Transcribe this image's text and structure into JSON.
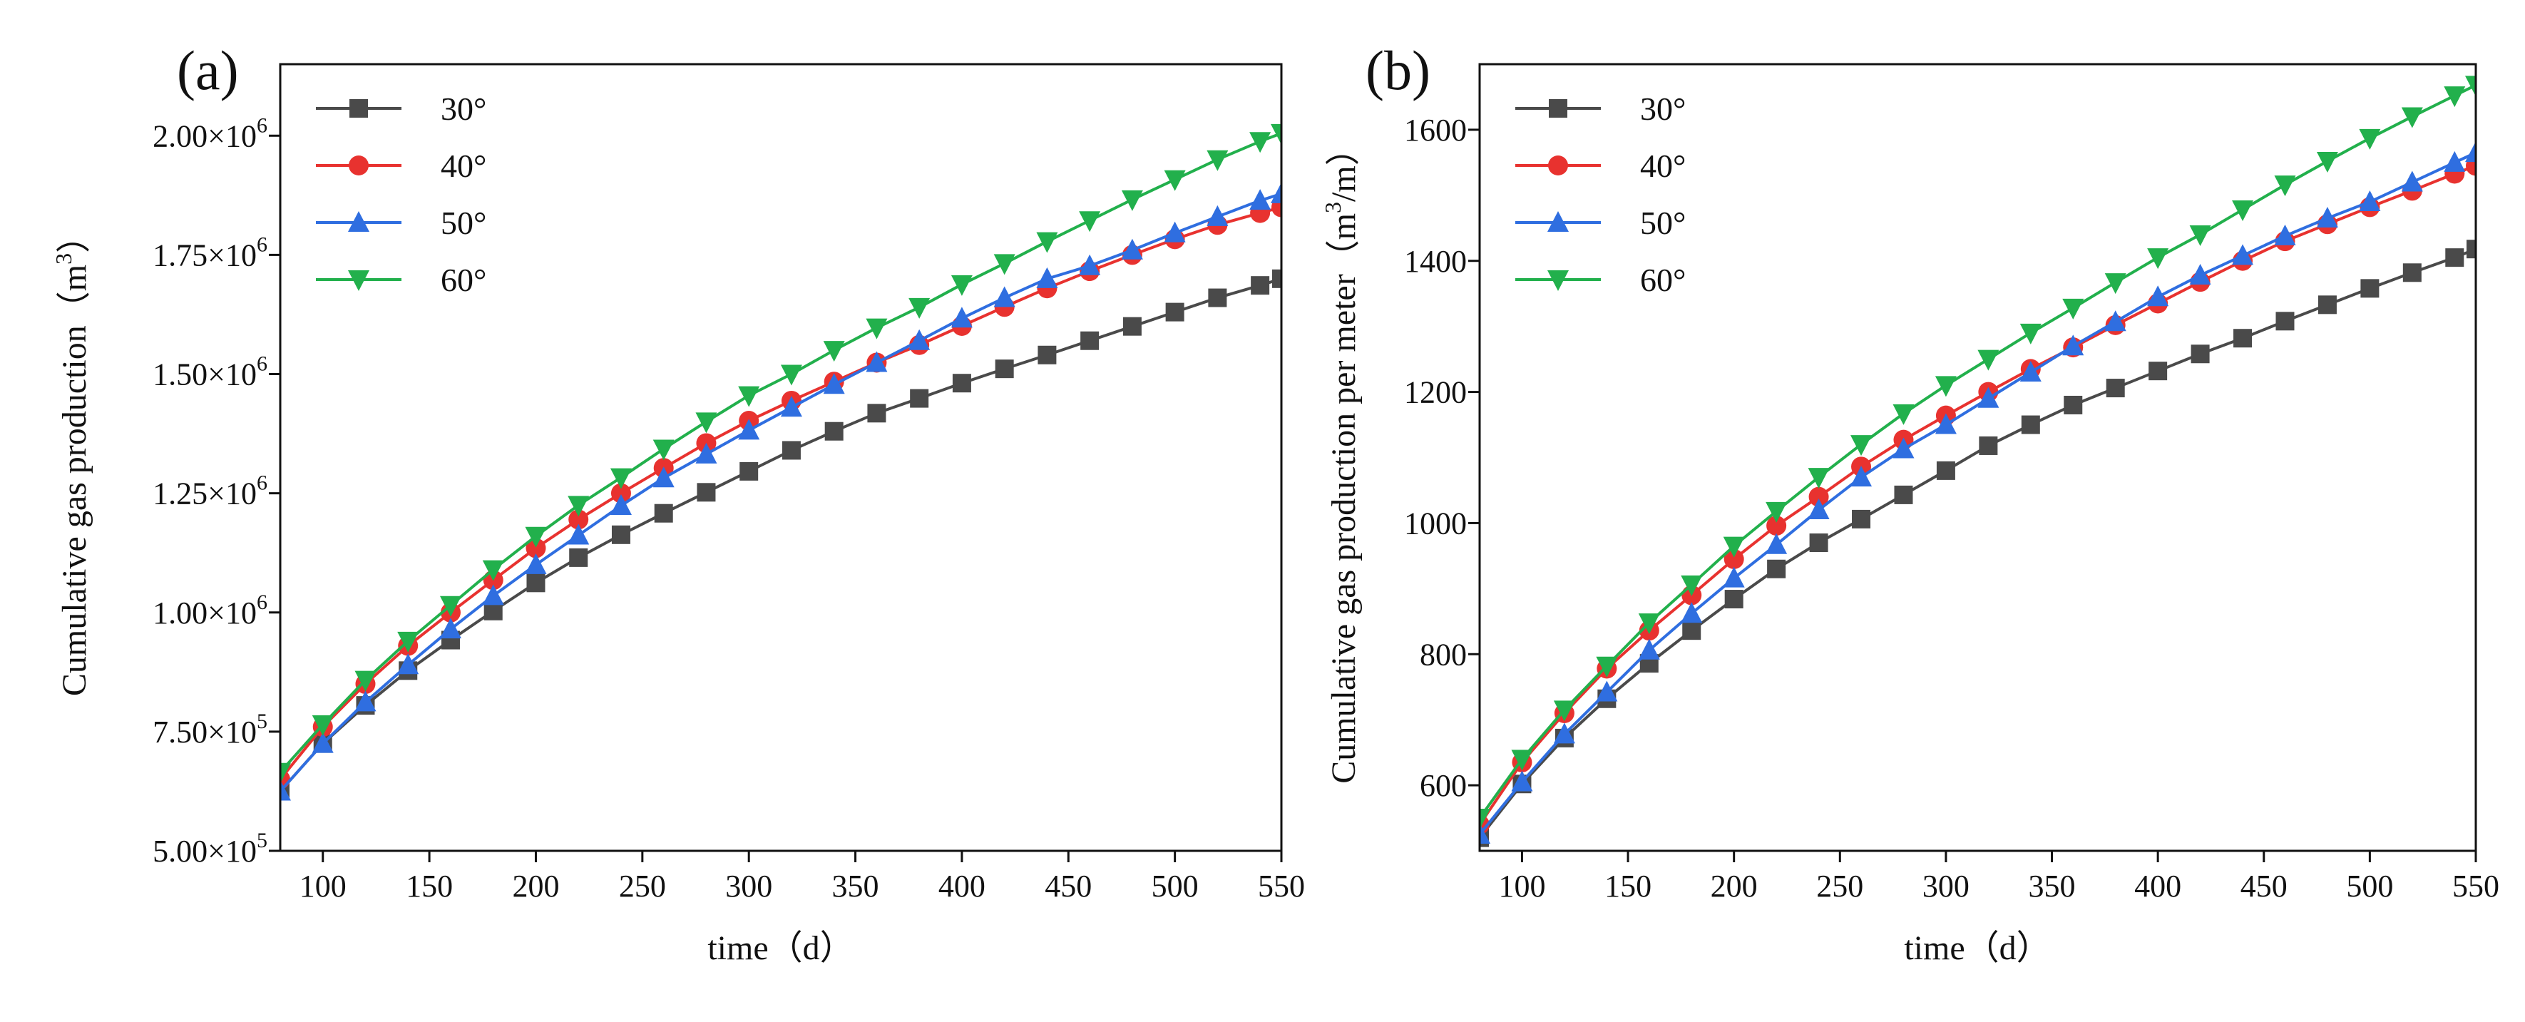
{
  "chart_data": [
    {
      "type": "line",
      "panel_label": "(a)",
      "xlabel": "time（d）",
      "ylabel_main": "Cumulative gas production（m",
      "ylabel_sup": "3",
      "ylabel_close": "）",
      "xlim": [
        80,
        550
      ],
      "ylim": [
        500000,
        2150000
      ],
      "xticks": [
        100,
        150,
        200,
        250,
        300,
        350,
        400,
        450,
        500,
        550
      ],
      "yticks": [
        500000,
        750000,
        1000000,
        1250000,
        1500000,
        1750000,
        2000000
      ],
      "ytick_labels": [
        {
          "base": "5.00×10",
          "exp": "5"
        },
        {
          "base": "7.50×10",
          "exp": "5"
        },
        {
          "base": "1.00×10",
          "exp": "6"
        },
        {
          "base": "1.25×10",
          "exp": "6"
        },
        {
          "base": "1.50×10",
          "exp": "6"
        },
        {
          "base": "1.75×10",
          "exp": "6"
        },
        {
          "base": "2.00×10",
          "exp": "6"
        }
      ],
      "legend_position": "top-left",
      "x": [
        80,
        100,
        120,
        140,
        160,
        180,
        200,
        220,
        240,
        260,
        280,
        300,
        320,
        340,
        360,
        380,
        400,
        420,
        440,
        460,
        480,
        500,
        520,
        540,
        550
      ],
      "series": [
        {
          "name": "30°",
          "color": "#4a4a4a",
          "marker": "square",
          "values": [
            625000,
            725000,
            805000,
            878000,
            942000,
            1003000,
            1062000,
            1115000,
            1163000,
            1208000,
            1252000,
            1296000,
            1340000,
            1380000,
            1418000,
            1449000,
            1481000,
            1511000,
            1540000,
            1570000,
            1600000,
            1630000,
            1660000,
            1686000,
            1700000
          ]
        },
        {
          "name": "40°",
          "color": "#e8322f",
          "marker": "circle",
          "values": [
            650000,
            760000,
            850000,
            930000,
            1000000,
            1068000,
            1135000,
            1195000,
            1250000,
            1303000,
            1355000,
            1402000,
            1444000,
            1484000,
            1524000,
            1561000,
            1601000,
            1641000,
            1680000,
            1716000,
            1750000,
            1783000,
            1813000,
            1838000,
            1850000
          ]
        },
        {
          "name": "50°",
          "color": "#2f6ee0",
          "marker": "triangle-up",
          "values": [
            625000,
            725000,
            812000,
            890000,
            965000,
            1035000,
            1100000,
            1162000,
            1224000,
            1282000,
            1332000,
            1382000,
            1430000,
            1478000,
            1524000,
            1570000,
            1617000,
            1660000,
            1700000,
            1727000,
            1760000,
            1796000,
            1830000,
            1864000,
            1878000
          ]
        },
        {
          "name": "60°",
          "color": "#22b04c",
          "marker": "triangle-down",
          "values": [
            665000,
            765000,
            858000,
            940000,
            1015000,
            1090000,
            1160000,
            1225000,
            1283000,
            1343000,
            1400000,
            1455000,
            1500000,
            1550000,
            1597000,
            1640000,
            1688000,
            1732000,
            1778000,
            1822000,
            1866000,
            1908000,
            1950000,
            1988000,
            2005000
          ]
        }
      ]
    },
    {
      "type": "line",
      "panel_label": "(b)",
      "xlabel": "time（d）",
      "ylabel_main": "Cumulative gas production per meter（m",
      "ylabel_sup": "3",
      "ylabel_close": "/m）",
      "xlim": [
        80,
        550
      ],
      "ylim": [
        500,
        1700
      ],
      "xticks": [
        100,
        150,
        200,
        250,
        300,
        350,
        400,
        450,
        500,
        550
      ],
      "yticks": [
        600,
        800,
        1000,
        1200,
        1400,
        1600
      ],
      "ytick_labels": [
        {
          "base": "600",
          "exp": ""
        },
        {
          "base": "800",
          "exp": ""
        },
        {
          "base": "1000",
          "exp": ""
        },
        {
          "base": "1200",
          "exp": ""
        },
        {
          "base": "1400",
          "exp": ""
        },
        {
          "base": "1600",
          "exp": ""
        }
      ],
      "legend_position": "top-left",
      "x": [
        80,
        100,
        120,
        140,
        160,
        180,
        200,
        220,
        240,
        260,
        280,
        300,
        320,
        340,
        360,
        380,
        400,
        420,
        440,
        460,
        480,
        500,
        520,
        540,
        550
      ],
      "series": [
        {
          "name": "30°",
          "color": "#4a4a4a",
          "marker": "square",
          "values": [
            520,
            602,
            672,
            732,
            786,
            836,
            884,
            930,
            970,
            1006,
            1043,
            1080,
            1118,
            1150,
            1180,
            1206,
            1232,
            1258,
            1282,
            1308,
            1333,
            1358,
            1382,
            1405,
            1418
          ]
        },
        {
          "name": "40°",
          "color": "#e8322f",
          "marker": "circle",
          "values": [
            540,
            635,
            710,
            778,
            836,
            890,
            945,
            996,
            1040,
            1086,
            1127,
            1164,
            1200,
            1235,
            1268,
            1302,
            1335,
            1368,
            1400,
            1430,
            1456,
            1482,
            1507,
            1533,
            1545
          ]
        },
        {
          "name": "50°",
          "color": "#2f6ee0",
          "marker": "triangle-up",
          "values": [
            525,
            605,
            678,
            742,
            806,
            862,
            916,
            967,
            1020,
            1070,
            1113,
            1150,
            1190,
            1230,
            1270,
            1307,
            1345,
            1378,
            1408,
            1438,
            1465,
            1490,
            1520,
            1550,
            1565
          ]
        },
        {
          "name": "60°",
          "color": "#22b04c",
          "marker": "triangle-down",
          "values": [
            550,
            640,
            715,
            782,
            848,
            906,
            965,
            1018,
            1070,
            1120,
            1167,
            1210,
            1250,
            1290,
            1328,
            1367,
            1405,
            1440,
            1478,
            1516,
            1552,
            1587,
            1620,
            1652,
            1668
          ]
        }
      ]
    }
  ]
}
